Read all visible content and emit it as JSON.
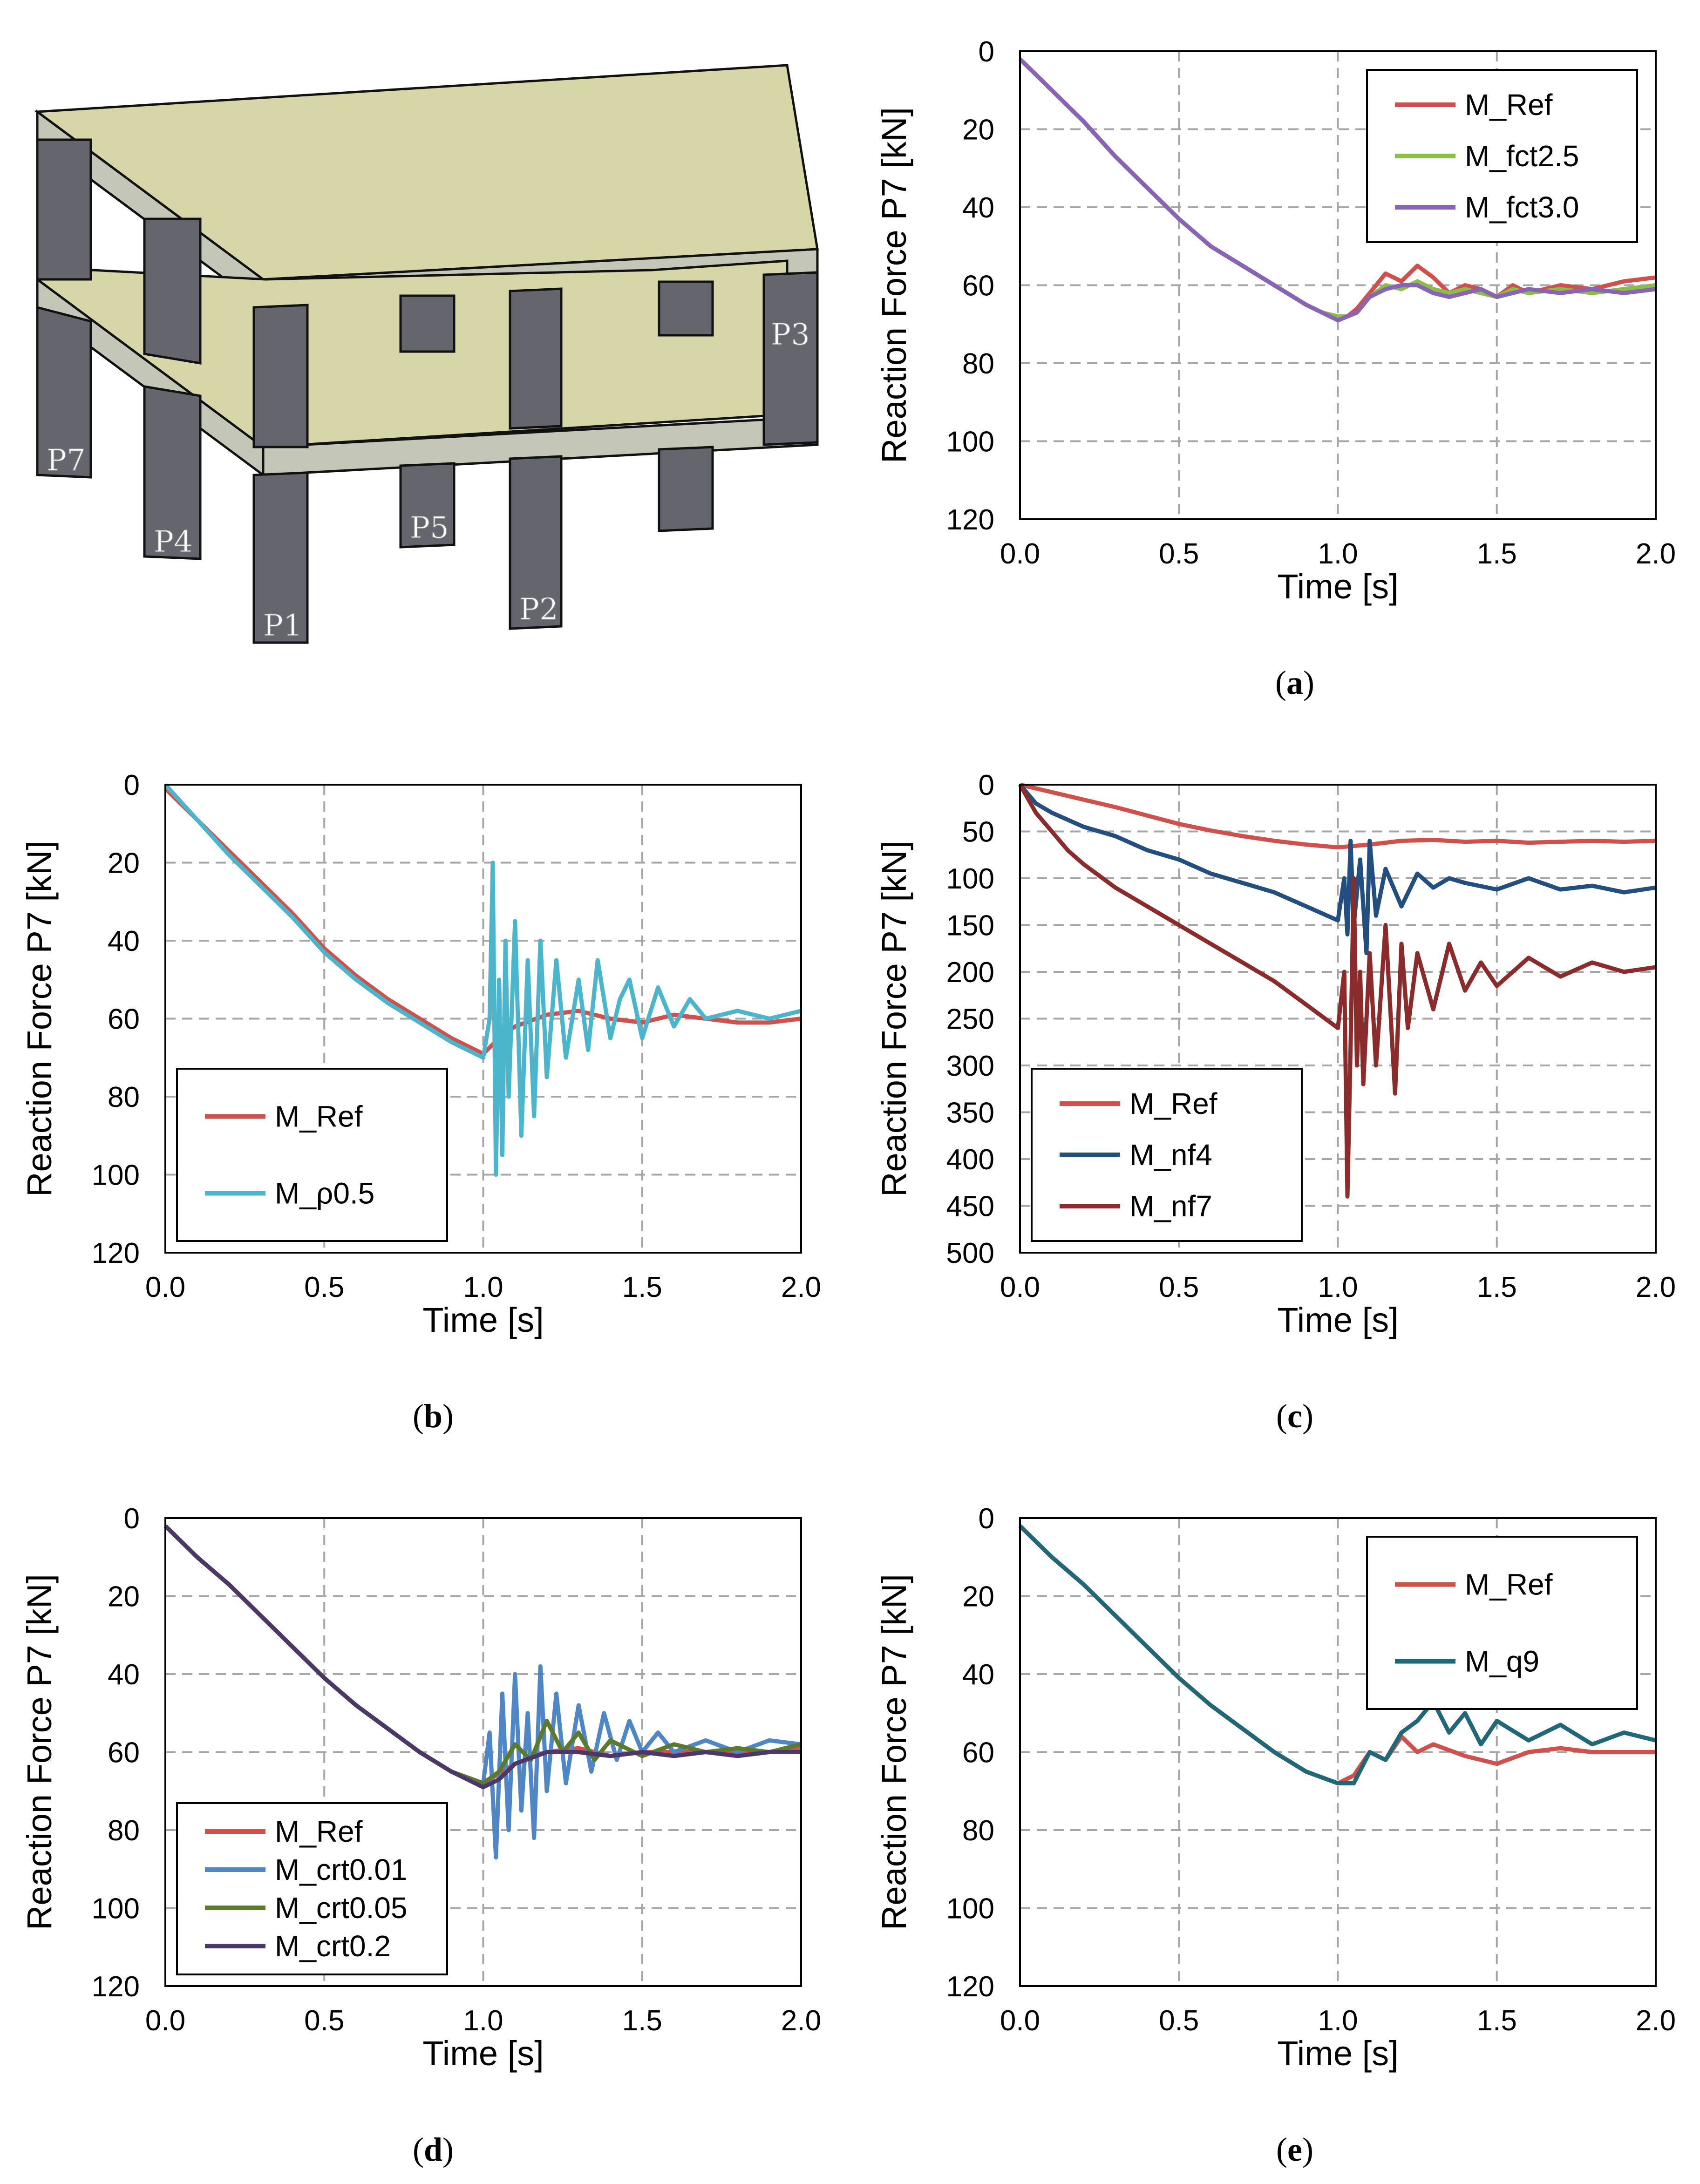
{
  "structure": {
    "labels": [
      "P7",
      "P4",
      "P1",
      "P5",
      "P2",
      "P3"
    ],
    "colors": {
      "slab_top": "#d6d6a8",
      "slab_side": "#c4c6b8",
      "pillar": "#64656d",
      "edge": "#111111"
    }
  },
  "chart_data": [
    {
      "id": "a",
      "type": "line",
      "caption_letter": "a",
      "xlabel": "Time [s]",
      "ylabel": "Reaction Force P7 [kN]",
      "xlim": [
        0,
        2
      ],
      "ylim": [
        0,
        120
      ],
      "y_inverted": true,
      "xticks": [
        "0.0",
        "0.5",
        "1.0",
        "1.5",
        "2.0"
      ],
      "yticks": [
        "0",
        "20",
        "40",
        "60",
        "80",
        "100",
        "120"
      ],
      "grid": true,
      "legend": "top-right",
      "series": [
        {
          "name": "M_Ref",
          "color": "#d0504c",
          "x": [
            0,
            0.1,
            0.2,
            0.3,
            0.4,
            0.5,
            0.6,
            0.7,
            0.8,
            0.9,
            0.95,
            1.0,
            1.03,
            1.06,
            1.1,
            1.15,
            1.2,
            1.25,
            1.3,
            1.35,
            1.4,
            1.45,
            1.5,
            1.55,
            1.6,
            1.7,
            1.8,
            1.9,
            2.0
          ],
          "y": [
            2,
            10,
            18,
            27,
            35,
            43,
            50,
            55,
            60,
            65,
            67,
            68,
            68,
            66,
            62,
            57,
            59,
            55,
            58,
            62,
            60,
            61,
            63,
            60,
            62,
            60,
            61,
            59,
            58
          ]
        },
        {
          "name": "M_fct2.5",
          "color": "#8bbd48",
          "x": [
            0,
            0.1,
            0.2,
            0.3,
            0.4,
            0.5,
            0.6,
            0.7,
            0.8,
            0.9,
            0.95,
            1.0,
            1.03,
            1.06,
            1.1,
            1.15,
            1.2,
            1.25,
            1.3,
            1.35,
            1.4,
            1.45,
            1.5,
            1.55,
            1.6,
            1.7,
            1.8,
            1.9,
            2.0
          ],
          "y": [
            2,
            10,
            18,
            27,
            35,
            43,
            50,
            55,
            60,
            65,
            67,
            68,
            68,
            67,
            63,
            60,
            61,
            59,
            61,
            62,
            61,
            62,
            63,
            61,
            62,
            61,
            62,
            61,
            60
          ]
        },
        {
          "name": "M_fct3.0",
          "color": "#8a64b4",
          "x": [
            0,
            0.1,
            0.2,
            0.3,
            0.4,
            0.5,
            0.6,
            0.7,
            0.8,
            0.9,
            0.95,
            1.0,
            1.03,
            1.06,
            1.1,
            1.15,
            1.2,
            1.25,
            1.3,
            1.35,
            1.4,
            1.45,
            1.5,
            1.55,
            1.6,
            1.7,
            1.8,
            1.9,
            2.0
          ],
          "y": [
            2,
            10,
            18,
            27,
            35,
            43,
            50,
            55,
            60,
            65,
            67,
            69,
            68,
            67,
            63,
            61,
            60,
            60,
            62,
            63,
            62,
            61,
            63,
            62,
            61,
            62,
            61,
            62,
            61
          ]
        }
      ]
    },
    {
      "id": "b",
      "type": "line",
      "caption_letter": "b",
      "xlabel": "Time [s]",
      "ylabel": "Reaction Force P7 [kN]",
      "xlim": [
        0,
        2
      ],
      "ylim": [
        0,
        120
      ],
      "y_inverted": true,
      "xticks": [
        "0.0",
        "0.5",
        "1.0",
        "1.5",
        "2.0"
      ],
      "yticks": [
        "0",
        "20",
        "40",
        "60",
        "80",
        "100",
        "120"
      ],
      "grid": true,
      "legend": "bottom-left",
      "series": [
        {
          "name": "M_Ref",
          "color": "#d0504c",
          "x": [
            0,
            0.1,
            0.2,
            0.3,
            0.4,
            0.5,
            0.6,
            0.7,
            0.8,
            0.9,
            1.0,
            1.05,
            1.1,
            1.2,
            1.3,
            1.4,
            1.5,
            1.6,
            1.7,
            1.8,
            1.9,
            2.0
          ],
          "y": [
            1,
            9,
            17,
            25,
            33,
            42,
            49,
            55,
            60,
            65,
            69,
            65,
            62,
            59,
            58,
            60,
            61,
            59,
            60,
            61,
            61,
            60
          ]
        },
        {
          "name": "M_ρ0.5",
          "color": "#4bb5cc",
          "x": [
            0,
            0.1,
            0.2,
            0.3,
            0.4,
            0.5,
            0.6,
            0.7,
            0.8,
            0.9,
            1.0,
            1.02,
            1.03,
            1.04,
            1.05,
            1.06,
            1.07,
            1.08,
            1.1,
            1.12,
            1.14,
            1.16,
            1.18,
            1.2,
            1.23,
            1.26,
            1.3,
            1.33,
            1.36,
            1.4,
            1.43,
            1.46,
            1.5,
            1.55,
            1.6,
            1.65,
            1.7,
            1.8,
            1.9,
            2.0
          ],
          "y": [
            0,
            9,
            18,
            26,
            34,
            43,
            50,
            56,
            61,
            66,
            70,
            60,
            20,
            100,
            50,
            95,
            40,
            80,
            35,
            90,
            45,
            85,
            40,
            75,
            45,
            70,
            50,
            68,
            45,
            65,
            55,
            50,
            65,
            52,
            62,
            55,
            60,
            58,
            60,
            58
          ]
        }
      ]
    },
    {
      "id": "c",
      "type": "line",
      "caption_letter": "c",
      "xlabel": "Time [s]",
      "ylabel": "Reaction Force P7 [kN]",
      "xlim": [
        0,
        2
      ],
      "ylim": [
        0,
        500
      ],
      "y_inverted": true,
      "xticks": [
        "0.0",
        "0.5",
        "1.0",
        "1.5",
        "2.0"
      ],
      "yticks": [
        "0",
        "50",
        "100",
        "150",
        "200",
        "250",
        "300",
        "350",
        "400",
        "450",
        "500"
      ],
      "grid": true,
      "legend": "bottom-left",
      "series": [
        {
          "name": "M_Ref",
          "color": "#d0504c",
          "x": [
            0,
            0.1,
            0.2,
            0.3,
            0.4,
            0.5,
            0.6,
            0.7,
            0.8,
            0.9,
            1.0,
            1.1,
            1.2,
            1.3,
            1.4,
            1.5,
            1.6,
            1.7,
            1.8,
            1.9,
            2.0
          ],
          "y": [
            0,
            8,
            16,
            24,
            33,
            42,
            49,
            55,
            60,
            64,
            67,
            64,
            60,
            59,
            61,
            60,
            62,
            61,
            60,
            61,
            60
          ]
        },
        {
          "name": "M_nf4",
          "color": "#234f80",
          "x": [
            0,
            0.05,
            0.1,
            0.2,
            0.3,
            0.4,
            0.5,
            0.6,
            0.7,
            0.8,
            0.9,
            1.0,
            1.02,
            1.03,
            1.04,
            1.05,
            1.07,
            1.09,
            1.1,
            1.12,
            1.15,
            1.2,
            1.25,
            1.3,
            1.35,
            1.4,
            1.5,
            1.6,
            1.7,
            1.8,
            1.9,
            2.0
          ],
          "y": [
            0,
            20,
            30,
            45,
            55,
            70,
            80,
            95,
            105,
            115,
            130,
            145,
            100,
            160,
            60,
            150,
            80,
            180,
            60,
            140,
            90,
            130,
            95,
            110,
            100,
            105,
            112,
            100,
            112,
            108,
            115,
            110
          ]
        },
        {
          "name": "M_nf7",
          "color": "#8b2b2b",
          "x": [
            0,
            0.05,
            0.1,
            0.15,
            0.2,
            0.3,
            0.4,
            0.5,
            0.6,
            0.7,
            0.8,
            0.9,
            1.0,
            1.02,
            1.03,
            1.04,
            1.05,
            1.06,
            1.07,
            1.08,
            1.1,
            1.12,
            1.15,
            1.18,
            1.2,
            1.22,
            1.25,
            1.3,
            1.35,
            1.4,
            1.45,
            1.5,
            1.6,
            1.7,
            1.8,
            1.9,
            2.0
          ],
          "y": [
            0,
            30,
            50,
            70,
            85,
            110,
            130,
            150,
            170,
            190,
            210,
            235,
            260,
            200,
            440,
            280,
            100,
            300,
            200,
            320,
            180,
            300,
            150,
            330,
            170,
            260,
            180,
            240,
            170,
            220,
            190,
            215,
            185,
            205,
            190,
            200,
            195
          ]
        }
      ]
    },
    {
      "id": "d",
      "type": "line",
      "caption_letter": "d",
      "xlabel": "Time [s]",
      "ylabel": "Reaction Force P7 [kN]",
      "xlim": [
        0,
        2
      ],
      "ylim": [
        0,
        120
      ],
      "y_inverted": true,
      "xticks": [
        "0.0",
        "0.5",
        "1.0",
        "1.5",
        "2.0"
      ],
      "yticks": [
        "0",
        "20",
        "40",
        "60",
        "80",
        "100",
        "120"
      ],
      "grid": true,
      "legend": "bottom-left",
      "series": [
        {
          "name": "M_Ref",
          "color": "#d0504c",
          "x": [
            0,
            0.1,
            0.2,
            0.3,
            0.4,
            0.5,
            0.6,
            0.7,
            0.8,
            0.9,
            1.0,
            1.1,
            1.2,
            1.3,
            1.4,
            1.5,
            1.6,
            1.7,
            1.8,
            1.9,
            2.0
          ],
          "y": [
            2,
            10,
            17,
            25,
            33,
            41,
            48,
            54,
            60,
            65,
            68,
            63,
            60,
            59,
            61,
            60,
            60,
            60,
            60,
            60,
            59
          ]
        },
        {
          "name": "M_crt0.01",
          "color": "#4f86c6",
          "x": [
            0,
            0.1,
            0.2,
            0.3,
            0.4,
            0.5,
            0.6,
            0.7,
            0.8,
            0.9,
            1.0,
            1.02,
            1.04,
            1.06,
            1.08,
            1.1,
            1.12,
            1.14,
            1.16,
            1.18,
            1.2,
            1.23,
            1.26,
            1.3,
            1.34,
            1.38,
            1.42,
            1.46,
            1.5,
            1.55,
            1.6,
            1.7,
            1.8,
            1.9,
            2.0
          ],
          "y": [
            2,
            10,
            17,
            25,
            33,
            41,
            48,
            54,
            60,
            65,
            68,
            55,
            87,
            45,
            80,
            40,
            75,
            50,
            82,
            38,
            70,
            45,
            68,
            48,
            65,
            50,
            62,
            52,
            60,
            55,
            60,
            57,
            60,
            57,
            58
          ]
        },
        {
          "name": "M_crt0.05",
          "color": "#5b7a2e",
          "x": [
            0,
            0.1,
            0.2,
            0.3,
            0.4,
            0.5,
            0.6,
            0.7,
            0.8,
            0.9,
            1.0,
            1.05,
            1.1,
            1.15,
            1.2,
            1.25,
            1.3,
            1.35,
            1.4,
            1.5,
            1.6,
            1.7,
            1.8,
            1.9,
            2.0
          ],
          "y": [
            2,
            10,
            17,
            25,
            33,
            41,
            48,
            54,
            60,
            65,
            68,
            65,
            58,
            62,
            52,
            60,
            55,
            62,
            57,
            61,
            58,
            60,
            59,
            60,
            58
          ]
        },
        {
          "name": "M_crt0.2",
          "color": "#4b3768",
          "x": [
            0,
            0.1,
            0.2,
            0.3,
            0.4,
            0.5,
            0.6,
            0.7,
            0.8,
            0.9,
            1.0,
            1.05,
            1.1,
            1.2,
            1.3,
            1.4,
            1.5,
            1.6,
            1.7,
            1.8,
            1.9,
            2.0
          ],
          "y": [
            2,
            10,
            17,
            25,
            33,
            41,
            48,
            54,
            60,
            65,
            69,
            67,
            63,
            60,
            60,
            61,
            60,
            61,
            60,
            61,
            60,
            60
          ]
        }
      ]
    },
    {
      "id": "e",
      "type": "line",
      "caption_letter": "e",
      "xlabel": "Time [s]",
      "ylabel": "Reaction Force P7 [kN]",
      "xlim": [
        0,
        2
      ],
      "ylim": [
        0,
        120
      ],
      "y_inverted": true,
      "xticks": [
        "0.0",
        "0.5",
        "1.0",
        "1.5",
        "2.0"
      ],
      "yticks": [
        "0",
        "20",
        "40",
        "60",
        "80",
        "100",
        "120"
      ],
      "grid": true,
      "legend": "top-right",
      "series": [
        {
          "name": "M_Ref",
          "color": "#d0504c",
          "x": [
            0,
            0.1,
            0.2,
            0.3,
            0.4,
            0.5,
            0.6,
            0.7,
            0.8,
            0.9,
            1.0,
            1.05,
            1.1,
            1.15,
            1.2,
            1.25,
            1.3,
            1.4,
            1.5,
            1.6,
            1.7,
            1.8,
            1.9,
            2.0
          ],
          "y": [
            2,
            10,
            17,
            25,
            33,
            41,
            48,
            54,
            60,
            65,
            68,
            66,
            60,
            62,
            56,
            60,
            58,
            61,
            63,
            60,
            59,
            60,
            60,
            60
          ]
        },
        {
          "name": "M_q9",
          "color": "#206878",
          "x": [
            0,
            0.1,
            0.2,
            0.3,
            0.4,
            0.5,
            0.6,
            0.7,
            0.8,
            0.9,
            1.0,
            1.05,
            1.1,
            1.15,
            1.2,
            1.25,
            1.3,
            1.35,
            1.4,
            1.45,
            1.5,
            1.6,
            1.7,
            1.8,
            1.9,
            2.0
          ],
          "y": [
            2,
            10,
            17,
            25,
            33,
            41,
            48,
            54,
            60,
            65,
            68,
            68,
            60,
            62,
            55,
            52,
            47,
            55,
            50,
            58,
            52,
            57,
            53,
            58,
            55,
            57
          ]
        }
      ]
    }
  ]
}
